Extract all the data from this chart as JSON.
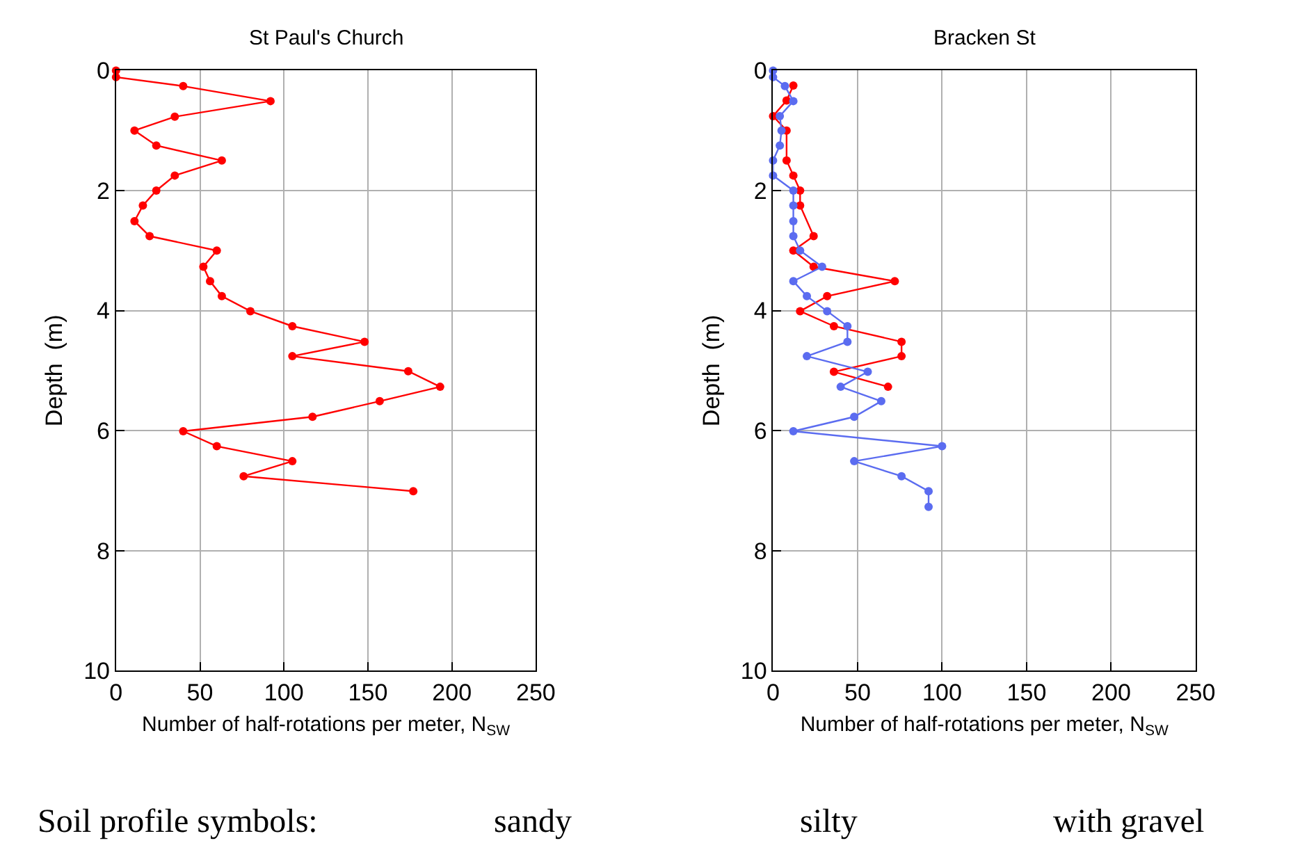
{
  "chart_data": [
    {
      "type": "line",
      "title": "St Paul's Church",
      "xlabel": "Number of half-rotations per meter, N$_{SW}$",
      "ylabel": "Depth  (m)",
      "xlim": [
        0,
        250
      ],
      "xticks": [
        0,
        50,
        100,
        150,
        200,
        250
      ],
      "ylim": [
        10,
        0
      ],
      "yticks": [
        0,
        2,
        4,
        6,
        8,
        10
      ],
      "grid": true,
      "marker": "circle",
      "line_style": "solid",
      "series": [
        {
          "color": "#ff0000",
          "x": [
            0,
            0,
            40,
            92,
            35,
            11,
            24,
            63,
            35,
            24,
            16,
            11,
            20,
            60,
            52,
            56,
            63,
            80,
            105,
            148,
            105,
            174,
            193,
            157,
            117,
            40,
            60,
            105,
            76,
            177
          ],
          "values": [
            0,
            0.11,
            0.26,
            0.51,
            0.77,
            1.0,
            1.25,
            1.5,
            1.75,
            2.0,
            2.25,
            2.51,
            2.76,
            3.0,
            3.27,
            3.51,
            3.76,
            4.01,
            4.26,
            4.52,
            4.76,
            5.01,
            5.27,
            5.51,
            5.77,
            6.01,
            6.26,
            6.51,
            6.76,
            7.01
          ]
        }
      ],
      "annotations": [
        "Soil profile symbols:",
        "sandy",
        "silty",
        "with gravel"
      ]
    },
    {
      "type": "line",
      "title": "Bracken St",
      "xlabel": "Number of half-rotations per meter, N$_{SW}$",
      "ylabel": "Depth  (m)",
      "xlim": [
        0,
        250
      ],
      "xticks": [
        0,
        50,
        100,
        150,
        200,
        250
      ],
      "ylim": [
        10,
        0
      ],
      "yticks": [
        0,
        2,
        4,
        6,
        8,
        10
      ],
      "grid": true,
      "marker": "circle",
      "line_style": "solid",
      "series": [
        {
          "color": "#ff0000",
          "x": [
            12,
            8,
            0,
            8,
            8,
            12,
            16,
            16,
            24,
            12,
            24,
            72,
            32,
            16,
            36,
            76,
            76,
            36,
            68
          ],
          "values": [
            0.25,
            0.5,
            0.76,
            1.0,
            1.5,
            1.75,
            2.0,
            2.25,
            2.76,
            3.0,
            3.27,
            3.51,
            3.76,
            4.01,
            4.26,
            4.52,
            4.76,
            5.02,
            5.27
          ]
        },
        {
          "color": "#5b6cf0",
          "x": [
            0,
            0,
            7,
            12,
            4,
            5,
            4,
            0,
            0,
            12,
            12,
            12,
            12,
            16,
            29,
            12,
            20,
            32,
            44,
            44,
            20,
            56,
            40,
            64,
            48,
            12,
            100,
            48,
            76,
            92,
            92
          ],
          "values": [
            0,
            0.11,
            0.26,
            0.51,
            0.76,
            1.0,
            1.25,
            1.5,
            1.75,
            2.0,
            2.25,
            2.51,
            2.76,
            3.0,
            3.27,
            3.51,
            3.76,
            4.01,
            4.26,
            4.52,
            4.76,
            5.02,
            5.27,
            5.51,
            5.77,
            6.01,
            6.26,
            6.51,
            6.76,
            7.01,
            7.27
          ]
        }
      ]
    }
  ]
}
